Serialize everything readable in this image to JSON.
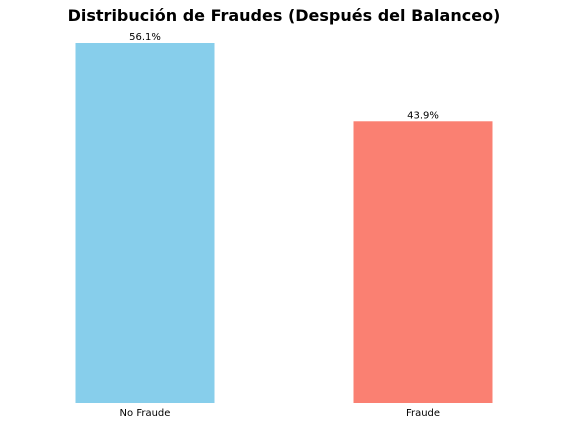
{
  "chart_data": {
    "type": "bar",
    "title": "Distribución de Fraudes (Después del Balanceo)",
    "categories": [
      "No Fraude",
      "Fraude"
    ],
    "values": [
      56.1,
      43.9
    ],
    "value_labels": [
      "56.1%",
      "43.9%"
    ],
    "colors": [
      "#87ceeb",
      "#fa8072"
    ],
    "xlabel": "",
    "ylabel": "",
    "ylim": [
      0,
      56.1
    ],
    "grid": false,
    "legend": "none"
  }
}
